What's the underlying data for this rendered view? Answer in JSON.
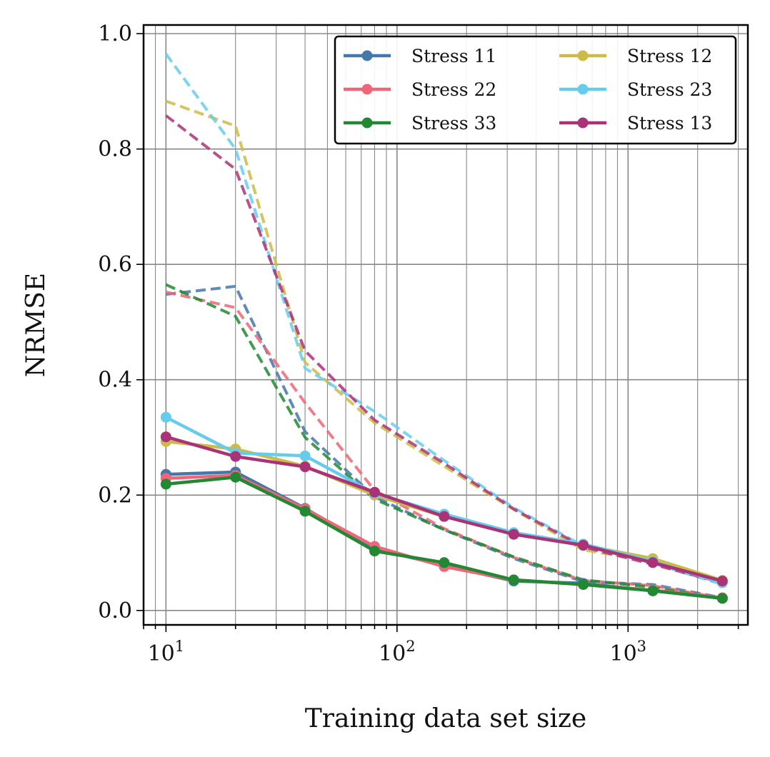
{
  "chart_data": {
    "type": "line",
    "xscale": "log",
    "xlabel": "Training data set size",
    "ylabel": "NRMSE",
    "xlim": [
      8,
      3300
    ],
    "ylim": [
      -0.025,
      1.015
    ],
    "x": [
      10,
      20,
      40,
      80,
      160,
      320,
      640,
      1280,
      2560
    ],
    "yticks": [
      0.0,
      0.2,
      0.4,
      0.6,
      0.8,
      1.0
    ],
    "ytick_labels": [
      "0.0",
      "0.2",
      "0.4",
      "0.6",
      "0.8",
      "1.0"
    ],
    "xticks": [
      {
        "value": 10,
        "base": "10",
        "exp": "1"
      },
      {
        "value": 100,
        "base": "10",
        "exp": "2"
      },
      {
        "value": 1000,
        "base": "10",
        "exp": "3"
      }
    ],
    "grid": true,
    "legend_position": "top-right",
    "series": [
      {
        "name": "Stress 11",
        "color": "#4477aa",
        "values": [
          0.236,
          0.24,
          0.177,
          0.107,
          0.078,
          0.051,
          0.047,
          0.034,
          0.021
        ],
        "dashed_values": [
          0.548,
          0.562,
          0.31,
          0.197,
          0.14,
          0.09,
          0.05,
          0.045,
          0.022
        ]
      },
      {
        "name": "Stress 22",
        "color": "#ee6677",
        "values": [
          0.229,
          0.234,
          0.176,
          0.111,
          0.076,
          0.053,
          0.045,
          0.035,
          0.022
        ],
        "dashed_values": [
          0.552,
          0.525,
          0.36,
          0.208,
          0.142,
          0.092,
          0.052,
          0.043,
          0.021
        ]
      },
      {
        "name": "Stress 33",
        "color": "#228833",
        "values": [
          0.219,
          0.231,
          0.172,
          0.103,
          0.083,
          0.053,
          0.045,
          0.034,
          0.021
        ],
        "dashed_values": [
          0.565,
          0.51,
          0.3,
          0.193,
          0.14,
          0.093,
          0.053,
          0.04,
          0.02
        ]
      },
      {
        "name": "Stress 12",
        "color": "#ccbb44",
        "values": [
          0.293,
          0.28,
          0.25,
          0.2,
          0.163,
          0.133,
          0.113,
          0.09,
          0.052
        ],
        "dashed_values": [
          0.883,
          0.84,
          0.43,
          0.325,
          0.25,
          0.175,
          0.105,
          0.085,
          0.05
        ]
      },
      {
        "name": "Stress 23",
        "color": "#66ccee",
        "values": [
          0.335,
          0.273,
          0.268,
          0.203,
          0.167,
          0.135,
          0.115,
          0.085,
          0.048
        ],
        "dashed_values": [
          0.965,
          0.8,
          0.42,
          0.345,
          0.26,
          0.178,
          0.112,
          0.082,
          0.045
        ]
      },
      {
        "name": "Stress 13",
        "color": "#aa3377",
        "values": [
          0.301,
          0.267,
          0.249,
          0.205,
          0.163,
          0.132,
          0.113,
          0.083,
          0.051
        ],
        "dashed_values": [
          0.858,
          0.765,
          0.45,
          0.33,
          0.255,
          0.176,
          0.11,
          0.08,
          0.048
        ]
      }
    ],
    "legend_order": [
      "Stress 11",
      "Stress 22",
      "Stress 33",
      "Stress 12",
      "Stress 23",
      "Stress 13"
    ]
  }
}
